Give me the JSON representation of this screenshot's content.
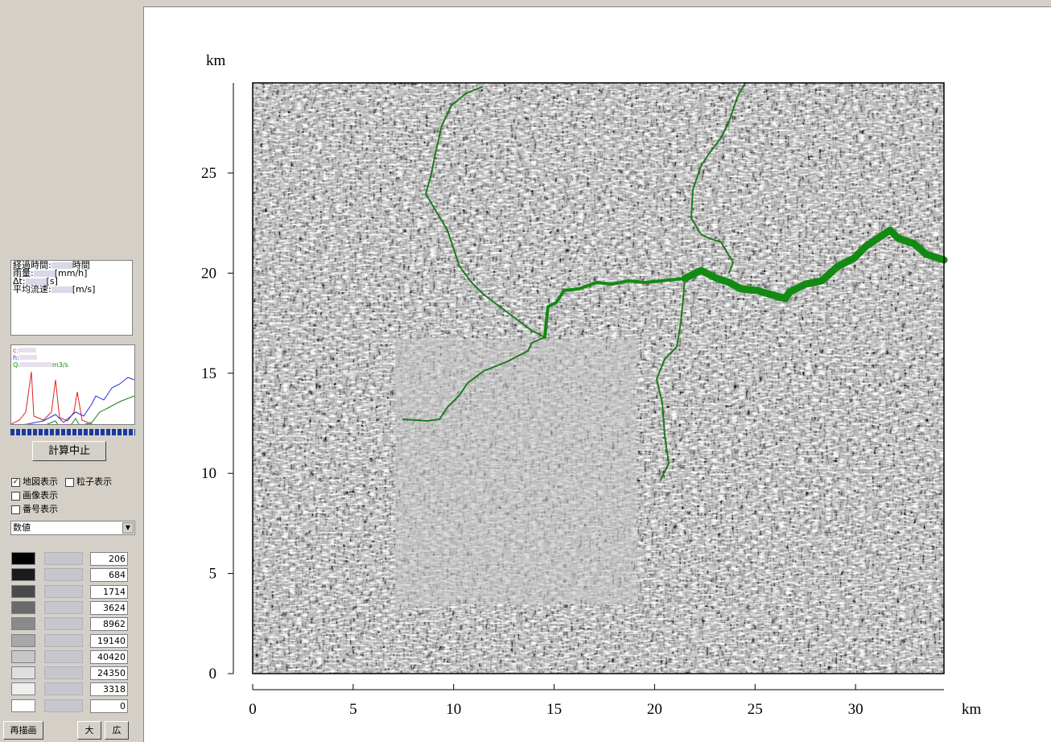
{
  "panel": {
    "status": [
      {
        "label": "経過時間:",
        "unit": "時間"
      },
      {
        "label": "雨量:",
        "unit": "[mm/h]"
      },
      {
        "label": "Δt:",
        "unit": "[s]"
      },
      {
        "label": "平均流速:",
        "unit": "[m/s]"
      }
    ],
    "mini_legend": [
      {
        "label": "c:",
        "color": "#e02020"
      },
      {
        "label": "h:",
        "color": "#2030e0"
      },
      {
        "label": "Q:",
        "unit": "m3/s",
        "color": "#108010"
      }
    ],
    "stop_button": "計算中止",
    "checkboxes": [
      {
        "label": "地図表示",
        "checked": true
      },
      {
        "label": "粒子表示",
        "checked": false
      },
      {
        "label": "画像表示",
        "checked": false
      },
      {
        "label": "番号表示",
        "checked": false
      }
    ],
    "dropdown": "数値",
    "legend_values": [
      "206",
      "684",
      "1714",
      "3624",
      "8962",
      "19140",
      "40420",
      "24350",
      "3318",
      "0"
    ],
    "legend_colors": [
      "#000000",
      "#1c1c1c",
      "#4a4a4a",
      "#6a6a6a",
      "#8a8a8a",
      "#a8a8a8",
      "#c6c6c6",
      "#dedede",
      "#eeeeee",
      "#ffffff"
    ],
    "buttons": [
      "再描画",
      "大",
      "広"
    ]
  },
  "map": {
    "x_label": "km",
    "y_label": "km",
    "xlim": [
      0,
      34.4
    ],
    "ylim": [
      0,
      29.5
    ],
    "xticks": [
      0,
      5,
      10,
      15,
      20,
      25,
      30
    ],
    "yticks": [
      0,
      5,
      10,
      15,
      20,
      25
    ]
  }
}
